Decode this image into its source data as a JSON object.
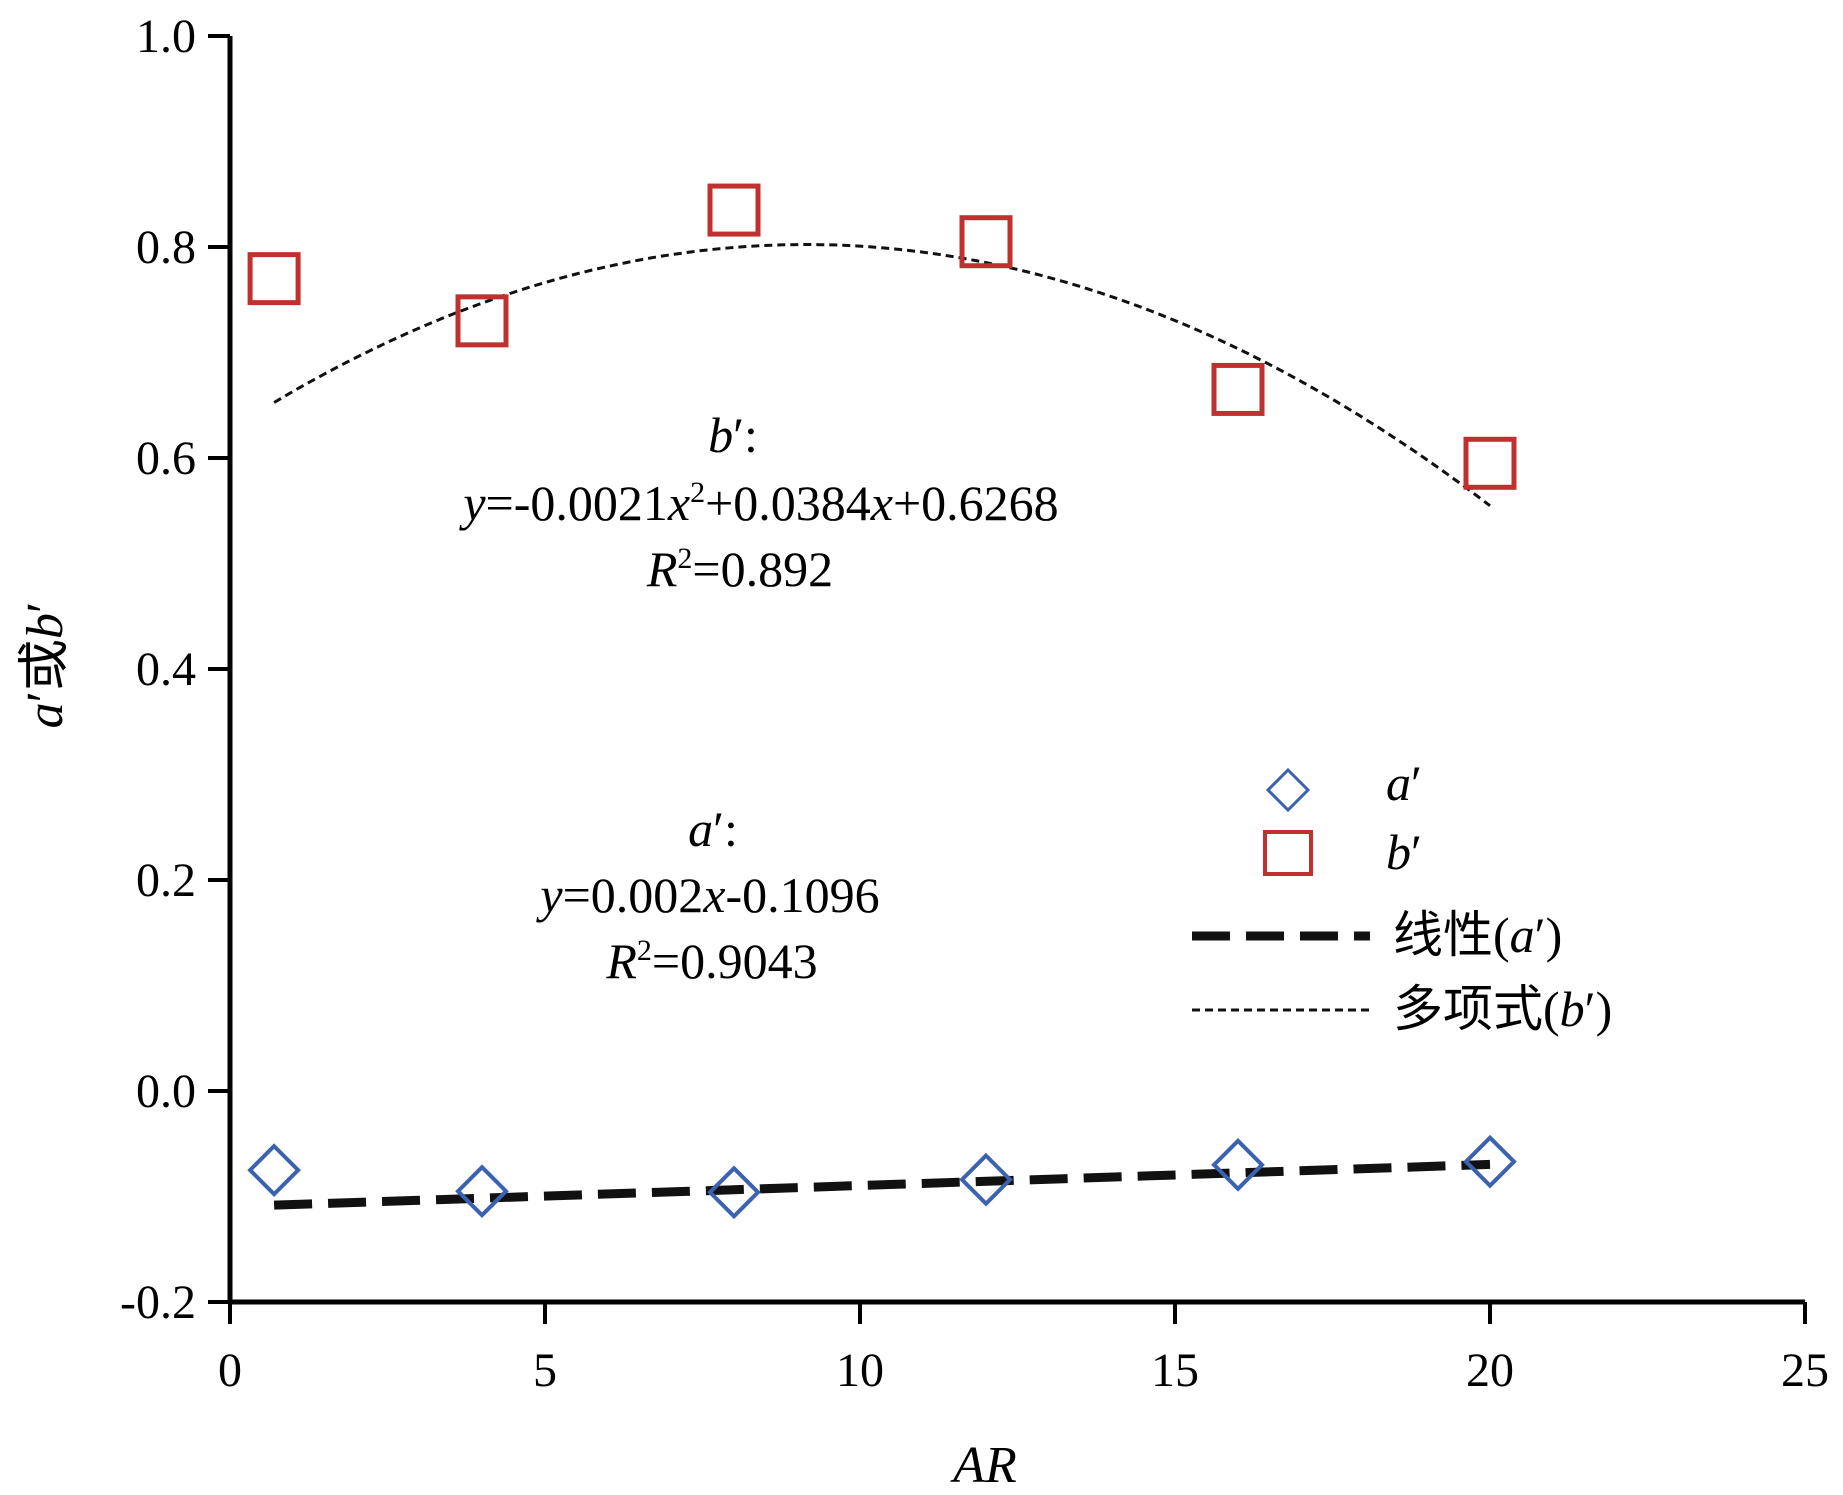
{
  "chart_data": {
    "type": "scatter",
    "xlabel": "AR",
    "ylabel": {
      "a": "a",
      "prime1": "′",
      "or": "或",
      "b": "b",
      "prime2": "′"
    },
    "xlim": [
      0,
      25
    ],
    "ylim": [
      -0.2,
      1.0
    ],
    "x_ticks": [
      0,
      5,
      10,
      15,
      20,
      25
    ],
    "y_ticks": [
      -0.2,
      0.0,
      0.2,
      0.4,
      0.6,
      0.8,
      1.0
    ],
    "x_tick_labels": [
      "0",
      "5",
      "10",
      "15",
      "20",
      "25"
    ],
    "y_tick_labels": [
      "-0.2",
      "0.0",
      "0.2",
      "0.4",
      "0.6",
      "0.8",
      "1.0"
    ],
    "grid": false,
    "legend_position": "right",
    "series": [
      {
        "name": "a′",
        "marker": "diamond",
        "color": "#3a62b0",
        "x": [
          0.7,
          4,
          8,
          12,
          16,
          20
        ],
        "y": [
          -0.075,
          -0.095,
          -0.096,
          -0.084,
          -0.07,
          -0.067
        ]
      },
      {
        "name": "b′",
        "marker": "square",
        "color": "#c0302e",
        "x": [
          0.7,
          4,
          8,
          12,
          16,
          20
        ],
        "y": [
          0.77,
          0.73,
          0.835,
          0.805,
          0.665,
          0.595
        ]
      }
    ],
    "trendlines": [
      {
        "name": "线性(a′)",
        "kind": "linear",
        "of": "a′",
        "style": "long-dash",
        "coefficients": {
          "slope": 0.002,
          "intercept": -0.1096
        },
        "x_range": [
          0.7,
          20
        ]
      },
      {
        "name": "多项式(b′)",
        "kind": "polynomial",
        "of": "b′",
        "style": "short-dash",
        "coefficients": {
          "a2": -0.0021,
          "a1": 0.0384,
          "a0": 0.6268
        },
        "x_range": [
          0.7,
          20
        ]
      }
    ],
    "annotations": {
      "b": {
        "label": "b",
        "label_suffix": "′:",
        "eq_y": "y",
        "eq_part1": "=-0.0021",
        "eq_x": "x",
        "eq_sup": "2",
        "eq_part2": "+0.0384",
        "eq_x2": "x",
        "eq_part3": "+0.6268",
        "r2_r": "R",
        "r2_sup": "2",
        "r2_value": "=0.892"
      },
      "a": {
        "label": "a",
        "label_suffix": "′:",
        "eq_y": "y",
        "eq_part1": "=0.002",
        "eq_x": "x",
        "eq_part2": "-0.1096",
        "r2_r": "R",
        "r2_sup": "2",
        "r2_value": "=0.9043"
      }
    },
    "legend": {
      "a_symbol": "a",
      "a_prime": "′",
      "b_symbol": "b",
      "b_prime": "′",
      "linear_prefix": "线性(",
      "linear_var": "a",
      "linear_suffix": "′)",
      "poly_prefix": "多项式(",
      "poly_var": "b",
      "poly_suffix": "′)"
    }
  }
}
